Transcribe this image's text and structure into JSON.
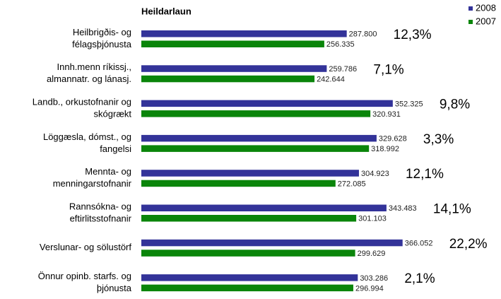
{
  "chart_data": {
    "type": "bar",
    "orientation": "horizontal",
    "title": "Heildarlaun",
    "categories": [
      [
        "Heilbrigðis- og",
        "félagsþjónusta"
      ],
      [
        "Innh.menn ríkissj.,",
        "almannatr. og lánasj."
      ],
      [
        "Landb., orkustofnanir og",
        "skógrækt"
      ],
      [
        "Löggæsla, dómst., og",
        "fangelsi"
      ],
      [
        "Mennta- og",
        "menningarstofnanir"
      ],
      [
        "Rannsókna- og",
        "eftirlitsstofnanir"
      ],
      [
        "Verslunar- og sölustörf"
      ],
      [
        "Önnur opinb. starfs. og",
        "þjónusta"
      ]
    ],
    "series": [
      {
        "name": "2008",
        "color": "#333399",
        "values": [
          287800,
          259786,
          352325,
          329628,
          304923,
          343483,
          366052,
          303286
        ],
        "value_labels": [
          "287.800",
          "259.786",
          "352.325",
          "329.628",
          "304.923",
          "343.483",
          "366.052",
          "303.286"
        ]
      },
      {
        "name": "2007",
        "color": "#0a850a",
        "values": [
          256335,
          242644,
          320931,
          318992,
          272085,
          301103,
          299629,
          296994
        ],
        "value_labels": [
          "256.335",
          "242.644",
          "320.931",
          "318.992",
          "272.085",
          "301.103",
          "299.629",
          "296.994"
        ]
      }
    ],
    "annotations": [
      "12,3%",
      "7,1%",
      "9,8%",
      "3,3%",
      "12,1%",
      "14,1%",
      "22,2%",
      "2,1%"
    ],
    "xlim": [
      0,
      500000
    ],
    "legend": "top-right"
  }
}
